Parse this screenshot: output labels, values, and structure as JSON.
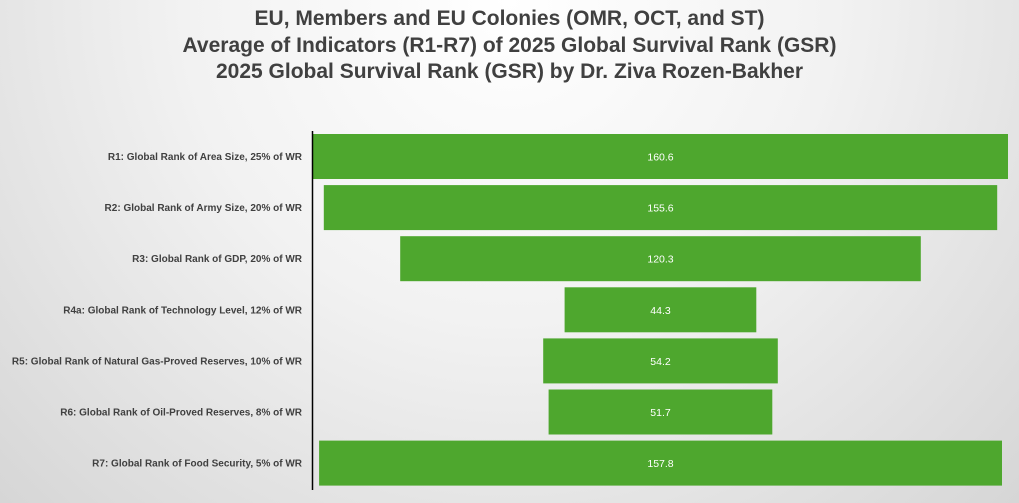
{
  "title_lines": [
    "EU, Members and EU Colonies (OMR, OCT, and ST)",
    "Average of Indicators (R1-R7) of 2025 Global Survival Rank (GSR)",
    "2025 Global Survival Rank (GSR) by Dr. Ziva Rozen-Bakher"
  ],
  "chart_data": {
    "type": "bar",
    "orientation": "horizontal-funnel",
    "categories": [
      "R1: Global Rank of Area Size, 25% of WR",
      "R2: Global Rank of Army Size, 20% of WR",
      "R3: Global Rank of GDP, 20% of WR",
      "R4a: Global Rank of Technology Level, 12% of WR",
      "R5: Global Rank of Natural Gas-Proved Reserves, 10% of WR",
      "R6: Global Rank of Oil-Proved Reserves, 8% of WR",
      "R7: Global Rank of Food Security, 5% of WR"
    ],
    "values": [
      160.6,
      155.6,
      120.3,
      44.3,
      54.2,
      51.7,
      157.8
    ],
    "value_labels": [
      "160.6",
      "155.6",
      "120.3",
      "44.3",
      "54.2",
      "51.7",
      "157.8"
    ],
    "bar_color": "#4ea72e",
    "label_color": "#ffffff",
    "axis_color": "#000000",
    "bars_centered": true,
    "grid": false,
    "legend": "none"
  }
}
